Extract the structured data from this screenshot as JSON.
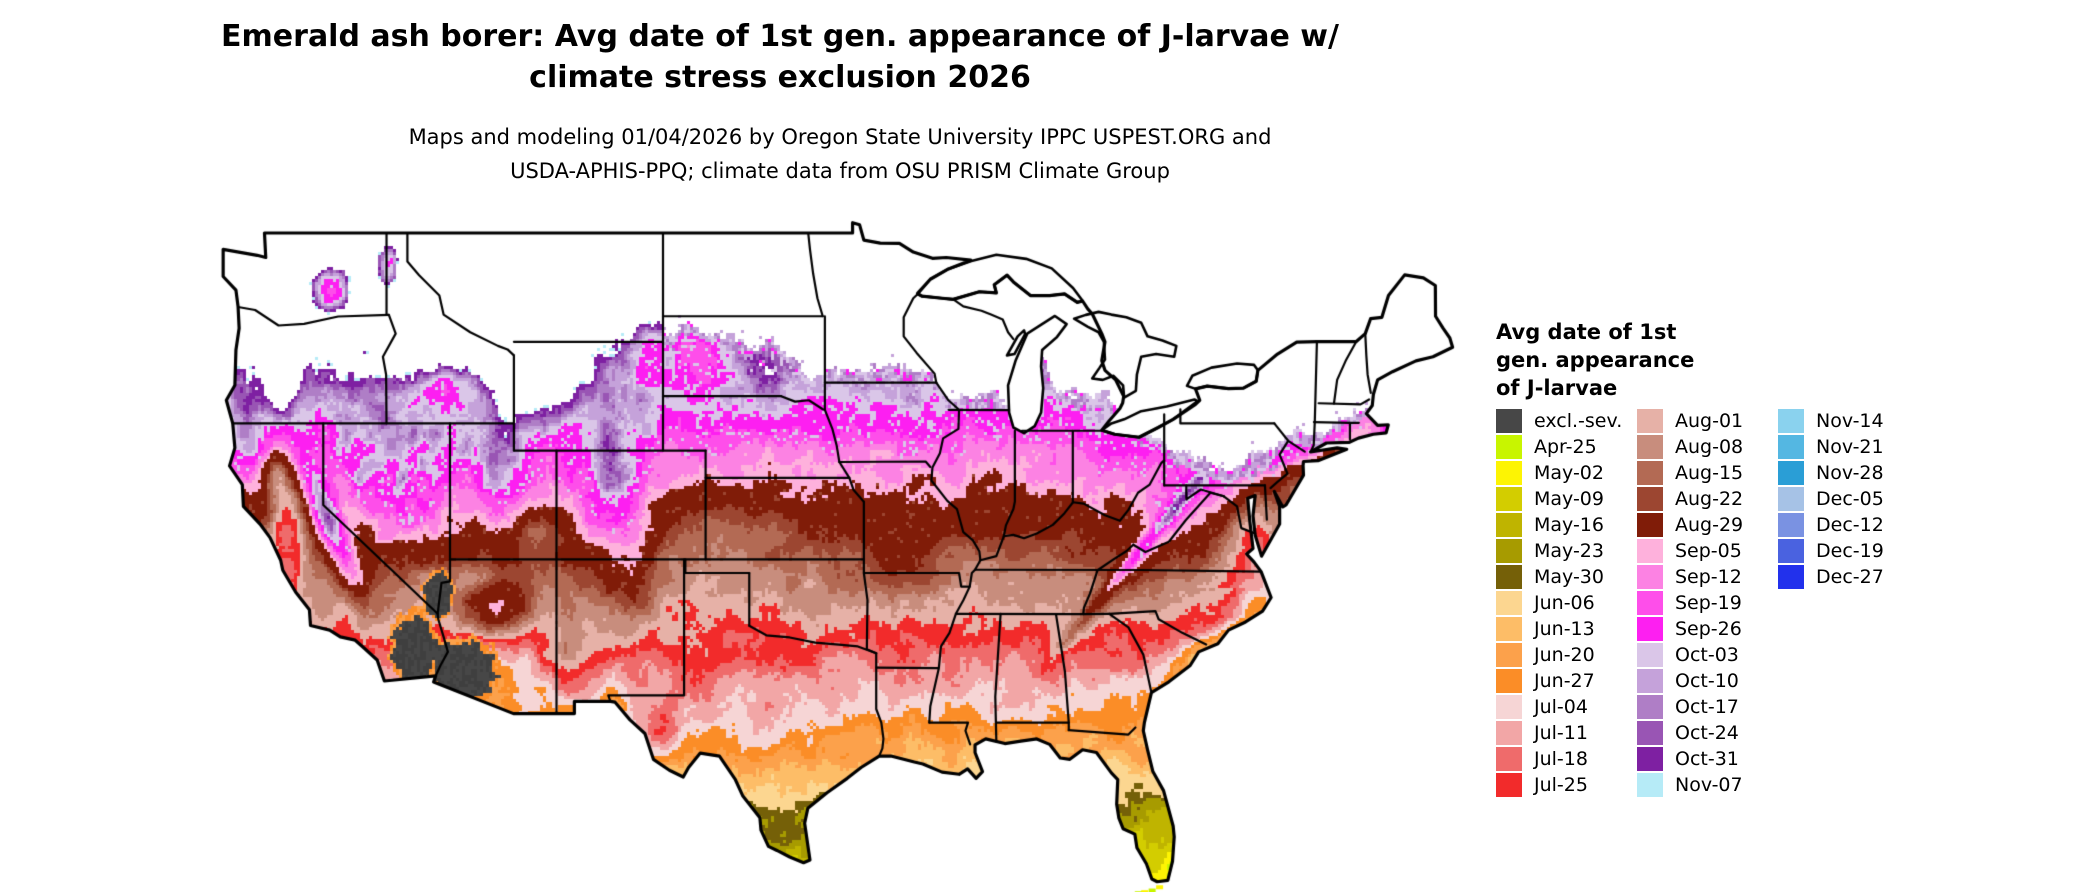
{
  "header": {
    "title_line1": "Emerald ash borer: Avg date of 1st gen. appearance of J-larvae w/",
    "title_line2": "climate stress exclusion 2026",
    "subtitle_line1": "Maps and modeling 01/04/2026 by Oregon State University IPPC USPEST.ORG and",
    "subtitle_line2": "USDA-APHIS-PPQ; climate data from OSU PRISM Climate Group"
  },
  "legend": {
    "title_lines": [
      "Avg date of 1st",
      "gen. appearance",
      "of J-larvae"
    ],
    "columns": [
      [
        {
          "label": "excl.-sev.",
          "color": "#474747"
        },
        {
          "label": "Apr-25",
          "color": "#c8f500"
        },
        {
          "label": "May-02",
          "color": "#fdf403"
        },
        {
          "label": "May-09",
          "color": "#d3cd00"
        },
        {
          "label": "May-16",
          "color": "#bfb400"
        },
        {
          "label": "May-23",
          "color": "#a79b00"
        },
        {
          "label": "May-30",
          "color": "#756008"
        },
        {
          "label": "Jun-06",
          "color": "#fcd690"
        },
        {
          "label": "Jun-13",
          "color": "#fdbd67"
        },
        {
          "label": "Jun-20",
          "color": "#fca14b"
        },
        {
          "label": "Jun-27",
          "color": "#fb8d27"
        },
        {
          "label": "Jul-04",
          "color": "#f6d5d5"
        },
        {
          "label": "Jul-11",
          "color": "#f2a6a6"
        },
        {
          "label": "Jul-18",
          "color": "#ef6b6b"
        },
        {
          "label": "Jul-25",
          "color": "#f22b2b"
        }
      ],
      [
        {
          "label": "Aug-01",
          "color": "#e6b1a7"
        },
        {
          "label": "Aug-08",
          "color": "#c88d7d"
        },
        {
          "label": "Aug-15",
          "color": "#b36a54"
        },
        {
          "label": "Aug-22",
          "color": "#9c4631"
        },
        {
          "label": "Aug-29",
          "color": "#801c08"
        },
        {
          "label": "Sep-05",
          "color": "#feb1dc"
        },
        {
          "label": "Sep-12",
          "color": "#fc82e3"
        },
        {
          "label": "Sep-19",
          "color": "#fe4eea"
        },
        {
          "label": "Sep-26",
          "color": "#fd1ff1"
        },
        {
          "label": "Oct-03",
          "color": "#dac6e8"
        },
        {
          "label": "Oct-10",
          "color": "#c5a2da"
        },
        {
          "label": "Oct-17",
          "color": "#af7ec6"
        },
        {
          "label": "Oct-24",
          "color": "#9955b4"
        },
        {
          "label": "Oct-31",
          "color": "#7e20a2"
        },
        {
          "label": "Nov-07",
          "color": "#b6ebf7"
        }
      ],
      [
        {
          "label": "Nov-14",
          "color": "#8ad2ee"
        },
        {
          "label": "Nov-21",
          "color": "#54b7e2"
        },
        {
          "label": "Nov-28",
          "color": "#2a9ed6"
        },
        {
          "label": "Dec-05",
          "color": "#a6c2e6"
        },
        {
          "label": "Dec-12",
          "color": "#7a92e2"
        },
        {
          "label": "Dec-19",
          "color": "#4a62e0"
        },
        {
          "label": "Dec-27",
          "color": "#2231ec"
        }
      ]
    ]
  }
}
